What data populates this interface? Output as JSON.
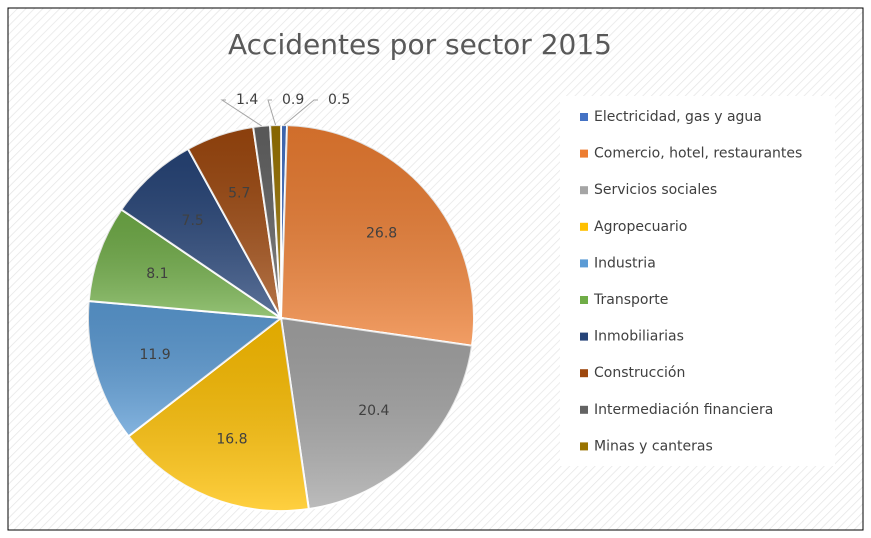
{
  "chart_data": {
    "type": "pie",
    "title": "Accidentes por sector 2015",
    "categories": [
      "Electricidad, gas y agua",
      "Comercio, hotel, restaurantes",
      "Servicios sociales",
      "Agropecuario",
      "Industria",
      "Transporte",
      "Inmobiliarias",
      "Construcción",
      "Intermediación financiera",
      "Minas y canteras"
    ],
    "values": [
      0.5,
      26.8,
      20.4,
      16.8,
      11.9,
      8.1,
      7.5,
      5.7,
      1.4,
      0.9
    ],
    "colors": [
      "#4472c4",
      "#ed7d31",
      "#a5a5a5",
      "#ffc000",
      "#5b9bd5",
      "#70ad47",
      "#264478",
      "#9e480e",
      "#636363",
      "#997300"
    ],
    "legend": "right"
  }
}
